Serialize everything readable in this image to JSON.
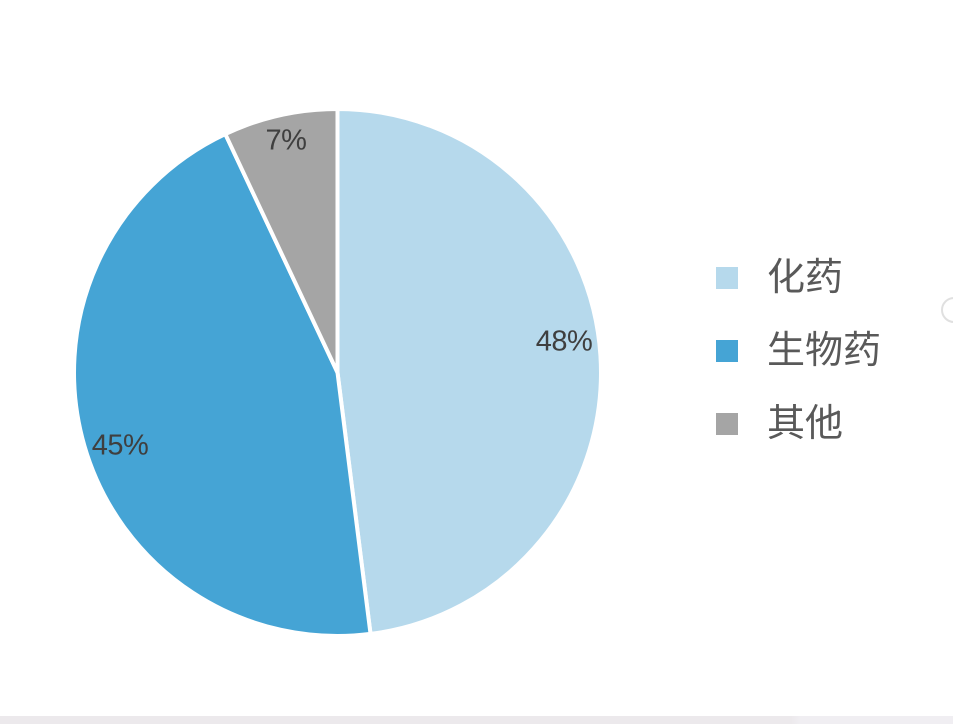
{
  "chart_data": {
    "type": "pie",
    "title": "",
    "start_angle_deg": 0,
    "direction": "clockwise",
    "legend_position": "right",
    "data_label_format": "percent",
    "background_color": "#FFFFFF",
    "slice_border_color": "#FFFFFF",
    "data_label_color": "#3F3F3F",
    "legend_text_color": "#595959",
    "categories": [
      "化药",
      "生物药",
      "其他"
    ],
    "values": [
      48,
      45,
      7
    ],
    "slices": [
      {
        "label": "化药",
        "value": 48,
        "display": "48%",
        "color": "#B6D9EC"
      },
      {
        "label": "生物药",
        "value": 45,
        "display": "45%",
        "color": "#45A4D5"
      },
      {
        "label": "其他",
        "value": 7,
        "display": "7%",
        "color": "#A5A5A5"
      }
    ]
  }
}
